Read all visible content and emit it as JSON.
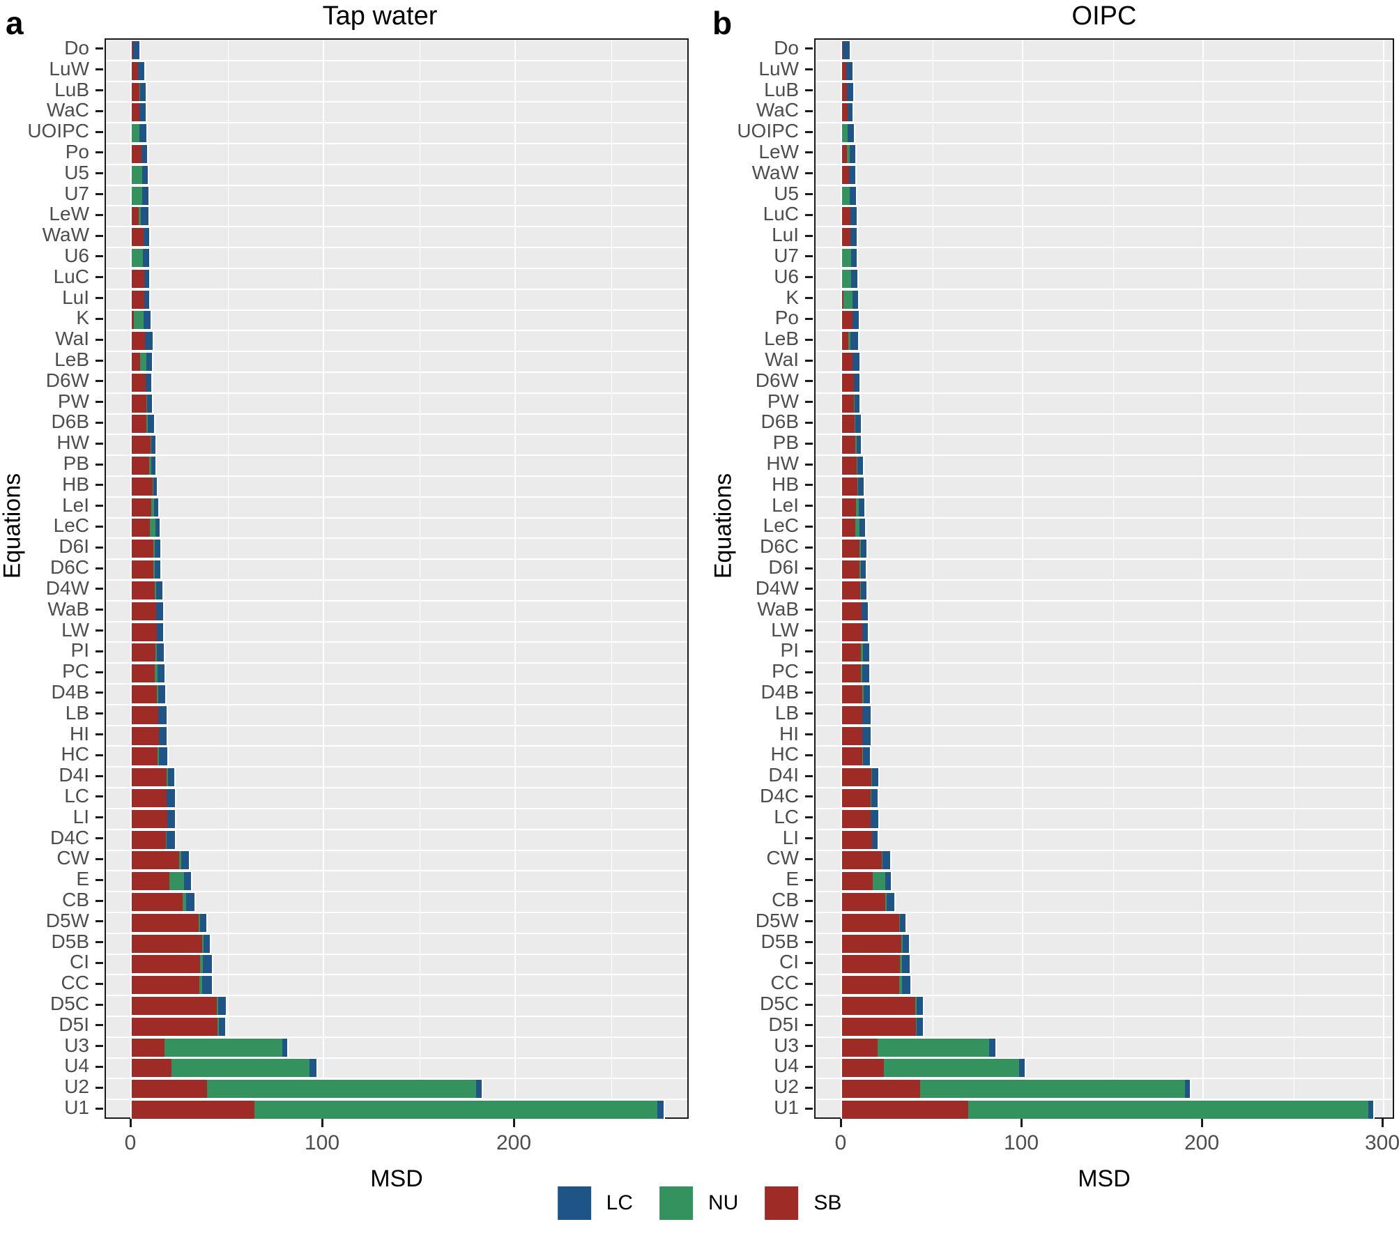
{
  "figure": {
    "tags": {
      "a": "a",
      "b": "b"
    },
    "legend": {
      "items": [
        {
          "label": "LC",
          "color": "#1f5487"
        },
        {
          "label": "NU",
          "color": "#33925e"
        },
        {
          "label": "SB",
          "color": "#9e2b26"
        }
      ]
    }
  },
  "chart_data": [
    {
      "type": "bar",
      "orientation": "horizontal",
      "panel_tag": "a",
      "title": "Tap water",
      "xlabel": "MSD",
      "ylabel": "Equations",
      "x_ticks": [
        0,
        100,
        200
      ],
      "x_minor_gridlines": [
        50,
        150,
        250
      ],
      "xlim": [
        0,
        291
      ],
      "grid": true,
      "legend_position": "bottom",
      "stack_order": [
        "SB",
        "NU",
        "LC"
      ],
      "categories": [
        "Do",
        "LuW",
        "LuB",
        "WaC",
        "UOIPC",
        "Po",
        "U5",
        "U7",
        "LeW",
        "WaW",
        "U6",
        "LuC",
        "LuI",
        "K",
        "WaI",
        "LeB",
        "D6W",
        "PW",
        "D6B",
        "HW",
        "PB",
        "HB",
        "LeI",
        "LeC",
        "D6I",
        "D6C",
        "D4W",
        "WaB",
        "LW",
        "PI",
        "PC",
        "D4B",
        "LB",
        "HI",
        "HC",
        "D4I",
        "LC",
        "LI",
        "D4C",
        "CW",
        "E",
        "CB",
        "D5W",
        "D5B",
        "CI",
        "CC",
        "D5C",
        "D5I",
        "U3",
        "U4",
        "U2",
        "U1"
      ],
      "series": [
        {
          "name": "SB",
          "color": "#9e2b26",
          "values": [
            0.6,
            3.2,
            3.9,
            4.1,
            0,
            5.1,
            0,
            0,
            3.6,
            6.2,
            0,
            6.5,
            6.4,
            1.0,
            7.0,
            4.4,
            7.3,
            7.5,
            7.5,
            9.8,
            9.0,
            10.8,
            10.2,
            9.6,
            11.2,
            11.4,
            12.1,
            12.8,
            13.1,
            12.4,
            12.1,
            13.1,
            13.8,
            14.1,
            13.6,
            18.2,
            18.2,
            18.4,
            17.7,
            24.7,
            19.6,
            26.4,
            34.9,
            36.8,
            35.6,
            35.2,
            44.4,
            44.8,
            17.1,
            20.7,
            39.1,
            64.1
          ]
        },
        {
          "name": "NU",
          "color": "#33925e",
          "values": [
            0,
            0,
            0.6,
            0,
            4.1,
            0,
            5.3,
            5.6,
            1.2,
            0,
            5.8,
            0,
            0,
            5.3,
            0,
            3.4,
            0,
            0.5,
            0.7,
            0.5,
            1.0,
            0.5,
            1.5,
            2.8,
            0.7,
            0.7,
            0.7,
            0,
            0,
            0.7,
            1.2,
            0.7,
            0,
            0,
            0.7,
            0.7,
            0,
            0,
            0.5,
            1.2,
            7.8,
            1.9,
            0.7,
            0.7,
            1.5,
            1.7,
            0.7,
            0.5,
            61.4,
            72.1,
            140.4,
            210.1
          ]
        },
        {
          "name": "LC",
          "color": "#1f5487",
          "values": [
            3.5,
            3.4,
            2.9,
            3.3,
            3.4,
            3.0,
            3.2,
            3.3,
            3.9,
            2.9,
            3.2,
            2.7,
            2.7,
            3.4,
            3.9,
            2.7,
            2.9,
            2.4,
            3.4,
            1.9,
            2.3,
            1.9,
            2.2,
            2.2,
            2.9,
            2.9,
            3.2,
            3.4,
            3.4,
            3.6,
            3.9,
            3.6,
            4.4,
            4.2,
            4.1,
            3.4,
            4.4,
            4.1,
            4.3,
            3.9,
            3.4,
            4.6,
            3.2,
            3.2,
            4.8,
            5.1,
            3.9,
            3.6,
            2.7,
            3.4,
            3.1,
            3.3
          ]
        }
      ]
    },
    {
      "type": "bar",
      "orientation": "horizontal",
      "panel_tag": "b",
      "title": "OIPC",
      "xlabel": "MSD",
      "ylabel": "Equations",
      "x_ticks": [
        0,
        100,
        200,
        300
      ],
      "x_minor_gridlines": [
        50,
        150,
        250
      ],
      "xlim": [
        0,
        307
      ],
      "grid": true,
      "legend_position": "bottom",
      "stack_order": [
        "SB",
        "NU",
        "LC"
      ],
      "categories": [
        "Do",
        "LuW",
        "LuB",
        "WaC",
        "UOIPC",
        "LeW",
        "WaW",
        "U5",
        "LuC",
        "LuI",
        "U7",
        "U6",
        "K",
        "Po",
        "LeB",
        "WaI",
        "D6W",
        "PW",
        "D6B",
        "PB",
        "HW",
        "HB",
        "LeI",
        "LeC",
        "D6C",
        "D6I",
        "D4W",
        "WaB",
        "LW",
        "PI",
        "PC",
        "D4B",
        "LB",
        "HI",
        "HC",
        "D4I",
        "D4C",
        "LC",
        "LI",
        "CW",
        "E",
        "CB",
        "D5W",
        "D5B",
        "CI",
        "CC",
        "D5C",
        "D5I",
        "U3",
        "U4",
        "U2",
        "U1"
      ],
      "series": [
        {
          "name": "SB",
          "color": "#9e2b26",
          "values": [
            0.5,
            2.3,
            2.8,
            3.1,
            0,
            2.6,
            3.9,
            0,
            4.6,
            4.6,
            0,
            0,
            0.8,
            5.9,
            3.3,
            5.9,
            6.4,
            6.4,
            6.9,
            7.2,
            8.0,
            8.5,
            7.7,
            7.5,
            9.5,
            9.8,
            10.0,
            10.9,
            11.1,
            10.6,
            10.3,
            11.1,
            11.3,
            11.3,
            11.1,
            16.2,
            15.7,
            16.0,
            16.5,
            21.9,
            17.0,
            23.9,
            31.7,
            32.9,
            32.2,
            31.7,
            40.4,
            40.9,
            19.8,
            23.2,
            43.4,
            69.8
          ]
        },
        {
          "name": "NU",
          "color": "#33925e",
          "values": [
            0,
            0,
            0,
            0,
            3.1,
            1.5,
            0,
            4.4,
            0,
            0,
            4.9,
            5.1,
            4.9,
            0,
            1.5,
            0,
            0,
            0.5,
            0.5,
            0.8,
            0.4,
            0.5,
            1.5,
            2.3,
            0.8,
            0.5,
            0.3,
            0,
            0,
            0.8,
            1.0,
            0.8,
            0,
            0,
            0.5,
            0.5,
            0.5,
            0,
            0,
            0.5,
            6.9,
            1.0,
            0.5,
            0.8,
            1.0,
            1.5,
            0.8,
            0.5,
            61.8,
            74.9,
            146.6,
            221.6
          ]
        },
        {
          "name": "LC",
          "color": "#1f5487",
          "values": [
            3.6,
            3.4,
            3.5,
            2.8,
            3.3,
            3.1,
            3.3,
            3.3,
            3.4,
            3.6,
            3.3,
            3.4,
            3.1,
            3.4,
            4.1,
            3.6,
            3.1,
            2.8,
            3.1,
            2.6,
            3.0,
            2.8,
            3.1,
            3.1,
            3.1,
            2.8,
            3.3,
            3.3,
            3.3,
            3.6,
            3.9,
            3.6,
            4.4,
            4.5,
            3.9,
            3.3,
            3.6,
            3.9,
            3.3,
            4.4,
            3.3,
            4.1,
            3.1,
            3.3,
            4.4,
            4.6,
            3.6,
            3.3,
            3.3,
            3.0,
            2.8,
            2.7
          ]
        }
      ]
    }
  ]
}
